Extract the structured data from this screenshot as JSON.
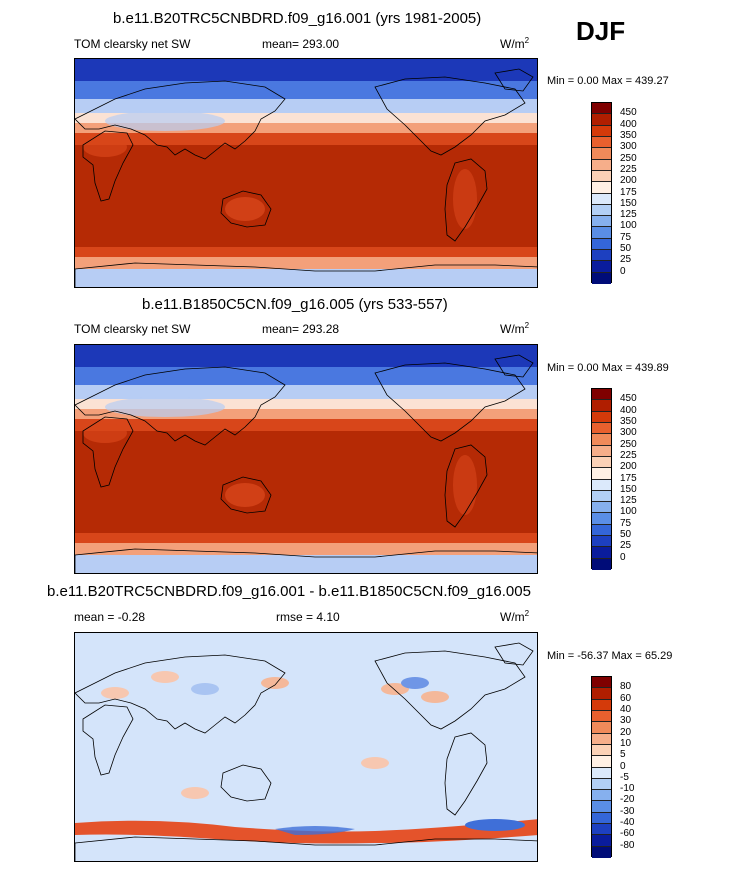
{
  "season_label": "DJF",
  "panels": [
    {
      "title": "b.e11.B20TRC5CNBDRD.f09_g16.001 (yrs 1981-2005)",
      "variable": "TOM clearsky net SW",
      "stat_text": "mean= 293.00",
      "units": "W/m",
      "units_sup": "2",
      "minmax": "Min =   0.00 Max = 439.27",
      "levels": [
        "450",
        "400",
        "350",
        "300",
        "250",
        "225",
        "200",
        "175",
        "150",
        "125",
        "100",
        "75",
        "50",
        "25",
        "0"
      ]
    },
    {
      "title": "b.e11.B1850C5CN.f09_g16.005 (yrs 533-557)",
      "variable": "TOM clearsky net SW",
      "stat_text": "mean= 293.28",
      "units": "W/m",
      "units_sup": "2",
      "minmax": "Min =   0.00 Max = 439.89",
      "levels": [
        "450",
        "400",
        "350",
        "300",
        "250",
        "225",
        "200",
        "175",
        "150",
        "125",
        "100",
        "75",
        "50",
        "25",
        "0"
      ]
    },
    {
      "title": "b.e11.B20TRC5CNBDRD.f09_g16.001 - b.e11.B1850C5CN.f09_g16.005",
      "variable": "mean =  -0.28",
      "stat_text": "rmse =   4.10",
      "units": "W/m",
      "units_sup": "2",
      "minmax": "Min = -56.37 Max =  65.29",
      "levels": [
        "80",
        "60",
        "40",
        "30",
        "20",
        "10",
        "5",
        "0",
        "-5",
        "-10",
        "-20",
        "-30",
        "-40",
        "-60",
        "-80"
      ]
    }
  ],
  "colorbar_colors": [
    "#7f0000",
    "#b01e00",
    "#d43a0a",
    "#e8602e",
    "#f08a5a",
    "#f6ae8a",
    "#fbd1b6",
    "#fff0e4",
    "#dbe9fb",
    "#b2cff5",
    "#86b0ee",
    "#5a8ee6",
    "#3466d8",
    "#1d40c0",
    "#0a1c9c",
    "#000c78"
  ],
  "map_palette": {
    "ocean_warm": "#b52a05",
    "mid_warm": "#d8461a",
    "peach": "#f3a07a",
    "pale": "#fbe2d4",
    "light_blue": "#b7cdf4",
    "mid_blue": "#4a78e0",
    "deep_blue": "#1c38b8",
    "diff_background": "#d4e4fa",
    "diff_red": "#e4532b",
    "diff_blue": "#3f6fd8",
    "coast": "#000000"
  }
}
